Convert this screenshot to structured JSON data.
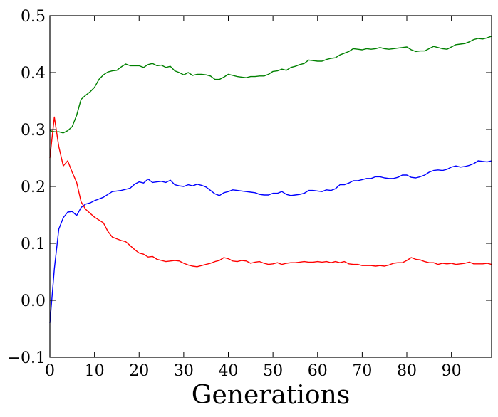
{
  "chart_data": {
    "type": "line",
    "title": "",
    "xlabel": "Generations",
    "ylabel": "",
    "xlim": [
      0,
      99
    ],
    "ylim": [
      -0.1,
      0.5
    ],
    "grid": false,
    "x_ticks": [
      0,
      10,
      20,
      30,
      40,
      50,
      60,
      70,
      80,
      90
    ],
    "x_tick_labels": [
      "0",
      "10",
      "20",
      "30",
      "40",
      "50",
      "60",
      "70",
      "80",
      "90"
    ],
    "y_ticks": [
      -0.1,
      0.0,
      0.1,
      0.2,
      0.3,
      0.4,
      0.5
    ],
    "y_tick_labels": [
      "−0.1",
      "0.0",
      "0.1",
      "0.2",
      "0.3",
      "0.4",
      "0.5"
    ],
    "x": [
      0,
      1,
      2,
      3,
      4,
      5,
      6,
      7,
      8,
      9,
      10,
      11,
      12,
      13,
      14,
      15,
      16,
      17,
      18,
      19,
      20,
      21,
      22,
      23,
      24,
      25,
      26,
      27,
      28,
      29,
      30,
      31,
      32,
      33,
      34,
      35,
      36,
      37,
      38,
      39,
      40,
      41,
      42,
      43,
      44,
      45,
      46,
      47,
      48,
      49,
      50,
      51,
      52,
      53,
      54,
      55,
      56,
      57,
      58,
      59,
      60,
      61,
      62,
      63,
      64,
      65,
      66,
      67,
      68,
      69,
      70,
      71,
      72,
      73,
      74,
      75,
      76,
      77,
      78,
      79,
      80,
      81,
      82,
      83,
      84,
      85,
      86,
      87,
      88,
      89,
      90,
      91,
      92,
      93,
      94,
      95,
      96,
      97,
      98,
      99
    ],
    "series": [
      {
        "color": "#008000",
        "values": [
          0.298,
          0.296,
          0.296,
          0.294,
          0.298,
          0.305,
          0.325,
          0.353,
          0.36,
          0.366,
          0.374,
          0.388,
          0.396,
          0.401,
          0.403,
          0.404,
          0.41,
          0.415,
          0.412,
          0.412,
          0.412,
          0.409,
          0.414,
          0.416,
          0.412,
          0.413,
          0.409,
          0.411,
          0.403,
          0.4,
          0.396,
          0.4,
          0.395,
          0.397,
          0.397,
          0.396,
          0.394,
          0.388,
          0.388,
          0.392,
          0.397,
          0.395,
          0.393,
          0.392,
          0.391,
          0.393,
          0.393,
          0.394,
          0.394,
          0.397,
          0.402,
          0.403,
          0.406,
          0.404,
          0.409,
          0.411,
          0.414,
          0.416,
          0.422,
          0.421,
          0.42,
          0.42,
          0.423,
          0.425,
          0.426,
          0.431,
          0.434,
          0.437,
          0.442,
          0.441,
          0.44,
          0.442,
          0.441,
          0.442,
          0.444,
          0.442,
          0.441,
          0.442,
          0.443,
          0.444,
          0.445,
          0.44,
          0.437,
          0.438,
          0.438,
          0.442,
          0.446,
          0.444,
          0.442,
          0.441,
          0.445,
          0.449,
          0.45,
          0.451,
          0.454,
          0.458,
          0.46,
          0.459,
          0.461,
          0.464
        ]
      },
      {
        "color": "#0000ff",
        "values": [
          -0.04,
          0.055,
          0.125,
          0.145,
          0.155,
          0.156,
          0.149,
          0.163,
          0.169,
          0.171,
          0.175,
          0.178,
          0.181,
          0.186,
          0.191,
          0.192,
          0.193,
          0.195,
          0.197,
          0.204,
          0.208,
          0.206,
          0.213,
          0.207,
          0.208,
          0.209,
          0.207,
          0.211,
          0.203,
          0.201,
          0.2,
          0.203,
          0.201,
          0.204,
          0.202,
          0.199,
          0.193,
          0.187,
          0.184,
          0.189,
          0.191,
          0.194,
          0.193,
          0.192,
          0.191,
          0.19,
          0.189,
          0.186,
          0.185,
          0.185,
          0.188,
          0.188,
          0.191,
          0.186,
          0.184,
          0.185,
          0.186,
          0.188,
          0.193,
          0.193,
          0.192,
          0.191,
          0.194,
          0.193,
          0.196,
          0.203,
          0.203,
          0.206,
          0.21,
          0.21,
          0.212,
          0.214,
          0.214,
          0.217,
          0.217,
          0.215,
          0.214,
          0.214,
          0.216,
          0.22,
          0.22,
          0.216,
          0.215,
          0.217,
          0.22,
          0.225,
          0.228,
          0.229,
          0.228,
          0.23,
          0.234,
          0.236,
          0.234,
          0.235,
          0.237,
          0.24,
          0.245,
          0.244,
          0.243,
          0.245
        ]
      },
      {
        "color": "#ff0000",
        "values": [
          0.25,
          0.322,
          0.27,
          0.236,
          0.245,
          0.225,
          0.207,
          0.173,
          0.16,
          0.153,
          0.146,
          0.141,
          0.136,
          0.121,
          0.111,
          0.108,
          0.105,
          0.103,
          0.096,
          0.089,
          0.083,
          0.081,
          0.076,
          0.077,
          0.072,
          0.07,
          0.068,
          0.069,
          0.07,
          0.069,
          0.065,
          0.062,
          0.06,
          0.059,
          0.061,
          0.063,
          0.065,
          0.068,
          0.07,
          0.075,
          0.073,
          0.069,
          0.068,
          0.07,
          0.069,
          0.065,
          0.067,
          0.068,
          0.065,
          0.063,
          0.064,
          0.066,
          0.063,
          0.065,
          0.066,
          0.066,
          0.067,
          0.068,
          0.067,
          0.067,
          0.068,
          0.067,
          0.068,
          0.066,
          0.068,
          0.066,
          0.068,
          0.064,
          0.063,
          0.063,
          0.061,
          0.061,
          0.061,
          0.06,
          0.061,
          0.06,
          0.062,
          0.065,
          0.066,
          0.066,
          0.07,
          0.075,
          0.072,
          0.071,
          0.068,
          0.066,
          0.066,
          0.063,
          0.065,
          0.064,
          0.065,
          0.063,
          0.064,
          0.065,
          0.067,
          0.064,
          0.064,
          0.064,
          0.065,
          0.063
        ]
      }
    ]
  }
}
